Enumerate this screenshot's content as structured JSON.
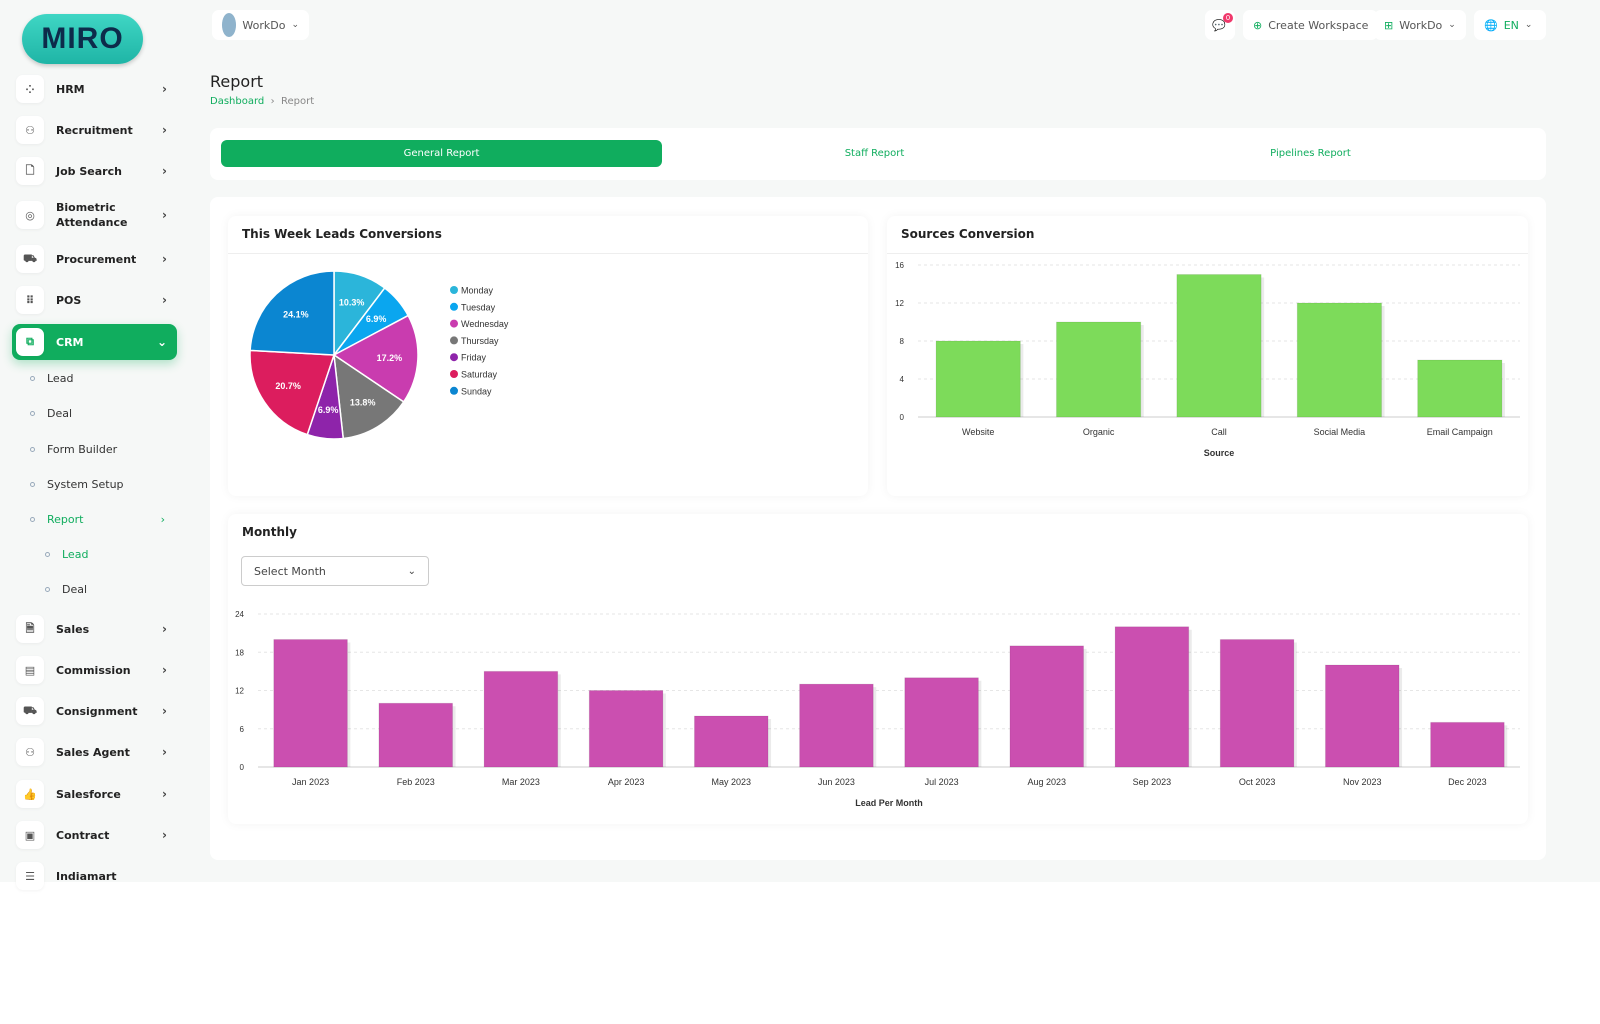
{
  "logo": "MIRO",
  "header": {
    "workspace": "WorkDo",
    "notif_count": "0",
    "create_workspace": "Create Workspace",
    "workdo_menu": "WorkDo",
    "language": "EN"
  },
  "sidebar": {
    "items": [
      {
        "label": "HRM",
        "icon": "hrm-icon"
      },
      {
        "label": "Recruitment",
        "icon": "user-plus-icon"
      },
      {
        "label": "Job Search",
        "icon": "file-search-icon"
      },
      {
        "label": "Biometric Attendance",
        "icon": "fingerprint-icon"
      },
      {
        "label": "Procurement",
        "icon": "cart-icon"
      },
      {
        "label": "POS",
        "icon": "grid-icon"
      },
      {
        "label": "CRM",
        "icon": "crm-icon"
      }
    ],
    "crm_sub": [
      "Lead",
      "Deal",
      "Form Builder",
      "System Setup",
      "Report"
    ],
    "report_sub": [
      "Lead",
      "Deal"
    ],
    "items2": [
      {
        "label": "Sales"
      },
      {
        "label": "Commission"
      },
      {
        "label": "Consignment"
      },
      {
        "label": "Sales Agent"
      },
      {
        "label": "Salesforce"
      },
      {
        "label": "Contract"
      },
      {
        "label": "Indiamart"
      }
    ]
  },
  "page": {
    "title": "Report",
    "breadcrumb": [
      "Dashboard",
      "Report"
    ]
  },
  "tabs": [
    "General Report",
    "Staff Report",
    "Pipelines Report"
  ],
  "pie_card": {
    "title": "This Week Leads Conversions"
  },
  "bar_card": {
    "title": "Sources Conversion"
  },
  "monthly_card": {
    "title": "Monthly",
    "select": "Select Month"
  },
  "chart_data": [
    {
      "type": "pie",
      "categories": [
        "Monday",
        "Tuesday",
        "Wednesday",
        "Thursday",
        "Friday",
        "Saturday",
        "Sunday"
      ],
      "values": [
        10.3,
        6.9,
        17.2,
        13.8,
        6.9,
        20.7,
        24.1
      ],
      "labels": [
        "10.3%",
        "6.9%",
        "17.2%",
        "13.8%",
        "6.9%",
        "20.7%",
        "24.1%"
      ],
      "colors": [
        "#2bb5da",
        "#0aa6ef",
        "#c93caf",
        "#777777",
        "#8e24aa",
        "#dc1d5e",
        "#0b86d1"
      ],
      "legend": "right"
    },
    {
      "type": "bar",
      "categories": [
        "Website",
        "Organic",
        "Call",
        "Social Media",
        "Email Campaign"
      ],
      "values": [
        8,
        10,
        15,
        12,
        6
      ],
      "xlabel": "Source",
      "ylim": [
        0,
        16
      ],
      "yticks": [
        0,
        4,
        8,
        12,
        16
      ],
      "color": "#7ddb5a",
      "grid": true
    },
    {
      "type": "bar",
      "categories": [
        "Jan 2023",
        "Feb 2023",
        "Mar 2023",
        "Apr 2023",
        "May 2023",
        "Jun 2023",
        "Jul 2023",
        "Aug 2023",
        "Sep 2023",
        "Oct 2023",
        "Nov 2023",
        "Dec 2023"
      ],
      "values": [
        20,
        10,
        15,
        12,
        8,
        13,
        14,
        19,
        22,
        20,
        16,
        7
      ],
      "xlabel": "Lead Per Month",
      "ylim": [
        0,
        24
      ],
      "yticks": [
        0,
        6,
        12,
        18,
        24
      ],
      "color": "#cb4fb0",
      "grid": true
    }
  ]
}
